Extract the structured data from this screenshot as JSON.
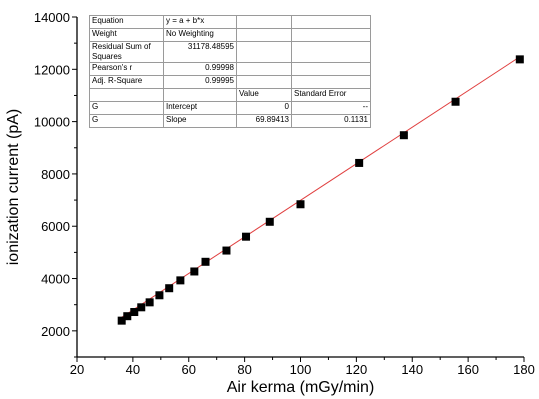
{
  "chart_data": {
    "type": "scatter",
    "xlabel": "Air kerma (mGy/min)",
    "ylabel": "ionization current (pA)",
    "xlim": [
      20,
      180
    ],
    "ylim": [
      1000,
      14000
    ],
    "xticks": [
      20,
      40,
      60,
      80,
      100,
      120,
      140,
      160,
      180
    ],
    "yticks": [
      2000,
      4000,
      6000,
      8000,
      10000,
      12000,
      14000
    ],
    "colors": {
      "points": "#000000",
      "fit_line": "#e04040",
      "axes": "#000000"
    },
    "series": [
      {
        "marker": "square",
        "x": [
          36,
          38,
          40.5,
          43,
          46,
          49.5,
          53,
          57,
          62,
          66,
          73.5,
          80.5,
          89,
          100,
          121,
          137,
          155.5,
          178.5
        ],
        "y": [
          2390,
          2560,
          2720,
          2900,
          3090,
          3360,
          3630,
          3930,
          4270,
          4640,
          5070,
          5600,
          6170,
          6840,
          8420,
          9480,
          10760,
          12380
        ]
      }
    ],
    "fit": {
      "intercept": 0,
      "slope": 69.89413,
      "x_range": [
        36,
        178.5
      ]
    },
    "stats_table": {
      "rows": [
        [
          "Equation",
          "y = a + b*x",
          "",
          ""
        ],
        [
          "Weight",
          "No Weighting",
          "",
          ""
        ],
        [
          "Residual Sum of Squares",
          "31178.48595",
          "",
          ""
        ],
        [
          "Pearson's r",
          "0.99998",
          "",
          ""
        ],
        [
          "Adj. R-Square",
          "0.99995",
          "",
          ""
        ],
        [
          "",
          "",
          "Value",
          "Standard Error"
        ],
        [
          "G",
          "Intercept",
          "0",
          "--"
        ],
        [
          "G",
          "Slope",
          "69.89413",
          "0.1131"
        ]
      ]
    }
  }
}
